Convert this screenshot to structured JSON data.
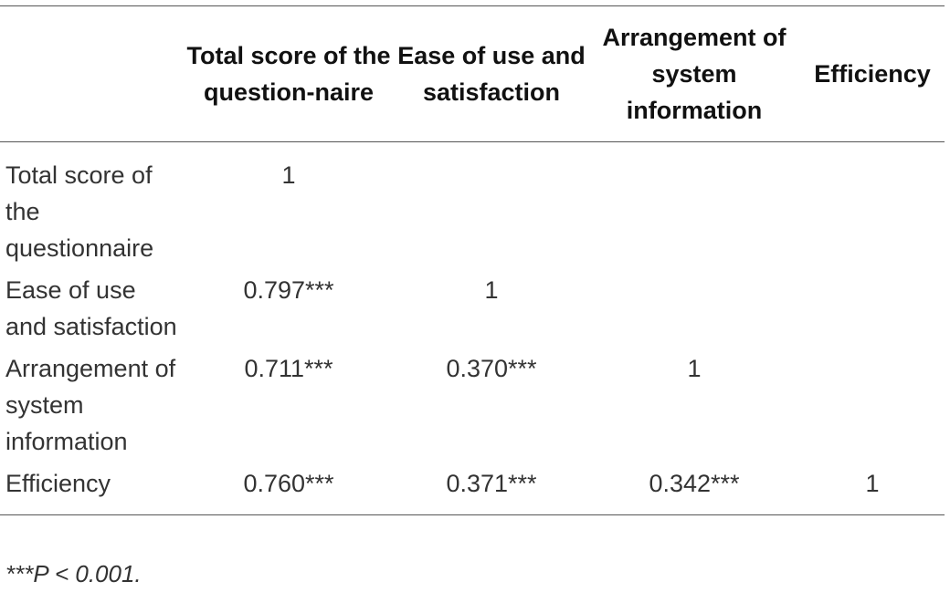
{
  "table": {
    "headers": [
      "",
      "Total score of the question-naire",
      "Ease of use and satisfaction",
      "Arrangement of system information",
      "Efficiency"
    ],
    "rows": [
      {
        "label": "Total score of the questionnaire",
        "cells": [
          "1",
          "",
          "",
          ""
        ]
      },
      {
        "label": "Ease of use and satisfaction",
        "cells": [
          "0.797***",
          "1",
          "",
          ""
        ]
      },
      {
        "label": "Arrangement of system information",
        "cells": [
          "0.711***",
          "0.370***",
          "1",
          ""
        ]
      },
      {
        "label": "Efficiency",
        "cells": [
          "0.760***",
          "0.371***",
          "0.342***",
          "1"
        ]
      }
    ]
  },
  "footnote": "***P < 0.001."
}
